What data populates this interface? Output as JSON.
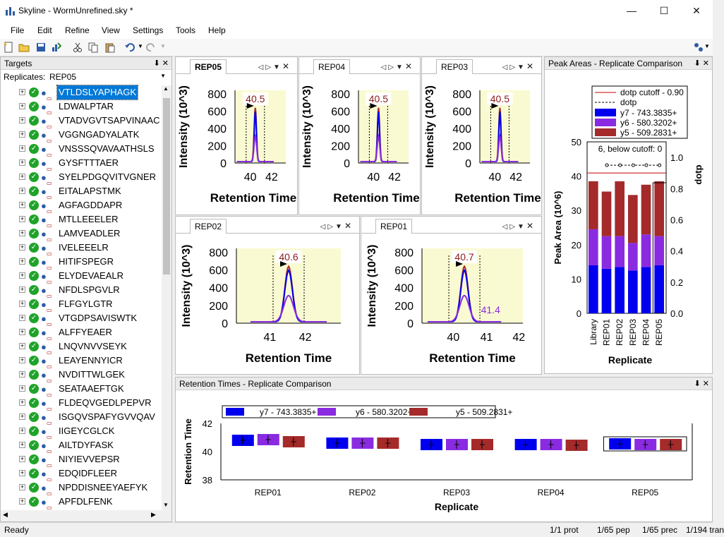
{
  "app": {
    "title": "Skyline - WormUnrefined.sky *"
  },
  "menu": [
    "File",
    "Edit",
    "Refine",
    "View",
    "Settings",
    "Tools",
    "Help"
  ],
  "targets": {
    "caption": "Targets",
    "replicates_label": "Replicates:",
    "replicate_value": "REP05",
    "peptides": [
      "VTLDSLYAPHAGK",
      "LDWALPTAR",
      "VTADVGVTSAPVINAAC",
      "VGGNGADYALATK",
      "VNSSSQVAVAATHSLS",
      "GYSFTTTAER",
      "SYELPDGQVITVGNER",
      "EITALAPSTMK",
      "AGFAGDDAPR",
      "MTLLEEELER",
      "LAMVEADLER",
      "IVELEEELR",
      "HITIFSPEGR",
      "ELYDEVAEALR",
      "NFDLSPGVLR",
      "FLFGYLGTR",
      "VTGDPSAVISWTK",
      "ALFFYEAER",
      "LNQVNVVSEYK",
      "LEAYENNYICR",
      "NVDITTWLGEK",
      "SEATAAEFTGK",
      "FLDEQVGEDLPEPVR",
      "ISGQVSPAFYGVVQAV",
      "IIGEYCGLCK",
      "AILTDYFASK",
      "NIYIEVVEPSR",
      "EDQIDFLEER",
      "NPDDISNEEYAEFYK",
      "APFDLFENK"
    ]
  },
  "chromatograms": [
    {
      "tab": "REP05",
      "peak_label": "40.5",
      "xticks": [
        "40",
        "42"
      ],
      "yticks": [
        "800",
        "600",
        "400",
        "200",
        "0"
      ],
      "ylabel": "Intensity (10^3)",
      "xlabel": "Retention Time"
    },
    {
      "tab": "REP04",
      "peak_label": "40.5",
      "xticks": [
        "40",
        "42"
      ],
      "yticks": [
        "800",
        "600",
        "400",
        "200",
        "0"
      ],
      "ylabel": "Intensity (10^3)",
      "xlabel": "Retention Time"
    },
    {
      "tab": "REP03",
      "peak_label": "40.5",
      "xticks": [
        "40",
        "42"
      ],
      "yticks": [
        "800",
        "600",
        "400",
        "200",
        "0"
      ],
      "ylabel": "Intensity (10^3)",
      "xlabel": "Retention Time"
    },
    {
      "tab": "REP02",
      "peak_label": "40.6",
      "xticks": [
        "41",
        "42"
      ],
      "yticks": [
        "800",
        "600",
        "400",
        "200",
        "0"
      ],
      "ylabel": "Intensity (10^3)",
      "xlabel": "Retention Time"
    },
    {
      "tab": "REP01",
      "peak_label": "40.7",
      "peak_label2": "41.4",
      "xticks": [
        "40",
        "41",
        "42"
      ],
      "yticks": [
        "800",
        "600",
        "400",
        "200",
        "0"
      ],
      "ylabel": "Intensity (10^3)",
      "xlabel": "Retention Time"
    }
  ],
  "chart_data": [
    {
      "type": "bar",
      "title": "Peak Areas - Replicate Comparison",
      "categories": [
        "Library",
        "REP01",
        "REP02",
        "REP03",
        "REP04",
        "REP05"
      ],
      "series": [
        {
          "name": "y7 - 743.3835+",
          "values": [
            14,
            13,
            13.5,
            12.5,
            13.5,
            14
          ]
        },
        {
          "name": "y6 - 580.3202+",
          "values": [
            10.5,
            9.5,
            9,
            8,
            9.5,
            8.5
          ]
        },
        {
          "name": "y5 - 509.2831+",
          "values": [
            14,
            13,
            16,
            14,
            14.5,
            16
          ]
        }
      ],
      "dotp": {
        "name": "dotp",
        "values": [
          0.95,
          0.95,
          0.95,
          0.95,
          0.95
        ]
      },
      "dotp_cutoff": {
        "name": "dotp cutoff - 0.90",
        "value": 0.9
      },
      "annotation": "6, below cutoff: 0",
      "xlabel": "Replicate",
      "ylabel": "Peak Area (10^6)",
      "y2label": "dotp",
      "yticks": [
        "50",
        "40",
        "30",
        "20",
        "10",
        "0"
      ],
      "y2ticks": [
        "1.0",
        "0.8",
        "0.6",
        "0.4",
        "0.2",
        "0.0"
      ],
      "ylim": [
        0,
        50
      ],
      "y2lim": [
        0,
        1.1
      ]
    },
    {
      "type": "bar",
      "title": "Retention Times - Replicate Comparison",
      "categories": [
        "REP01",
        "REP02",
        "REP03",
        "REP04",
        "REP05"
      ],
      "series": [
        {
          "name": "y7 - 743.3835+",
          "values": [
            40.8,
            40.6,
            40.5,
            40.5,
            40.55
          ]
        },
        {
          "name": "y6 - 580.3202+",
          "values": [
            40.85,
            40.6,
            40.5,
            40.5,
            40.5
          ]
        },
        {
          "name": "y5 - 509.2831+",
          "values": [
            40.7,
            40.6,
            40.5,
            40.45,
            40.5
          ]
        }
      ],
      "xlabel": "Replicate",
      "ylabel": "Retention Time",
      "yticks": [
        "42",
        "40",
        "38"
      ],
      "ylim": [
        38,
        42
      ]
    }
  ],
  "status": {
    "ready": "Ready",
    "prot": "1/1 prot",
    "pep": "1/65 pep",
    "prec": "1/65 prec",
    "tran": "1/194 tran"
  },
  "colors": {
    "y7": "#0000ee",
    "y6": "#8a2be2",
    "y5": "#a52a2a",
    "plotbg": "#fafad2",
    "cutoff": "#cc0000"
  }
}
